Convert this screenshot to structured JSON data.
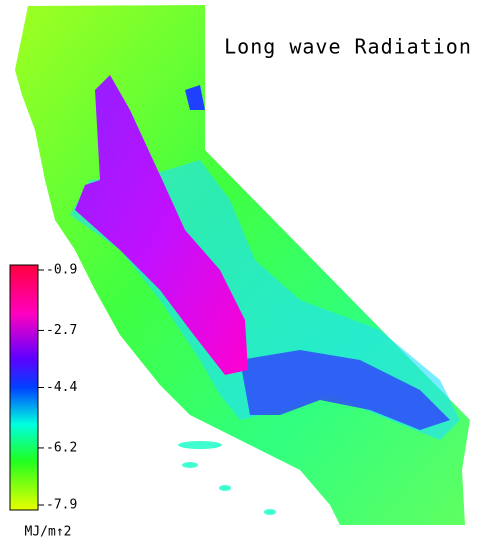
{
  "title": "Long wave Radiation",
  "colorbar": {
    "lim": [
      -7.9,
      -0.9
    ],
    "ticks": [
      -0.9,
      -2.7,
      -4.4,
      -6.2,
      -7.9
    ],
    "unit": "MJ/m↑2"
  }
}
